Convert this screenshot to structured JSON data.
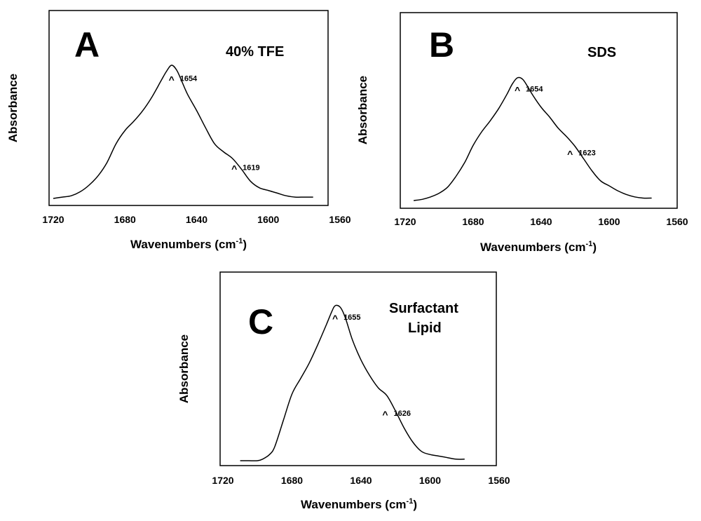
{
  "chart_data": [
    {
      "type": "line",
      "panel": "A",
      "title": "40% TFE",
      "xlabel": "Wavenumbers (cm",
      "xlabel_sup": "-1",
      "xlabel_close": ")",
      "ylabel": "Absorbance",
      "xlim": [
        1720,
        1560
      ],
      "ylim": [
        0,
        1
      ],
      "xticks": [
        1720,
        1680,
        1640,
        1600,
        1560
      ],
      "x": [
        1720,
        1715,
        1710,
        1705,
        1700,
        1695,
        1690,
        1685,
        1680,
        1675,
        1670,
        1665,
        1660,
        1657,
        1654,
        1651,
        1648,
        1645,
        1640,
        1635,
        1630,
        1625,
        1620,
        1615,
        1610,
        1605,
        1600,
        1595,
        1590,
        1585,
        1580,
        1575
      ],
      "y": [
        0.0,
        0.01,
        0.02,
        0.05,
        0.1,
        0.17,
        0.27,
        0.41,
        0.51,
        0.58,
        0.66,
        0.76,
        0.88,
        0.95,
        1.0,
        0.96,
        0.87,
        0.78,
        0.66,
        0.53,
        0.41,
        0.35,
        0.3,
        0.22,
        0.13,
        0.08,
        0.06,
        0.04,
        0.02,
        0.01,
        0.01,
        0.01
      ],
      "annotations": [
        {
          "text": "1654",
          "x": 1654,
          "y": 0.93
        },
        {
          "text": "1619",
          "x": 1619,
          "y": 0.26
        }
      ]
    },
    {
      "type": "line",
      "panel": "B",
      "title": "SDS",
      "xlabel": "Wavenumbers (cm",
      "xlabel_sup": "-1",
      "xlabel_close": ")",
      "ylabel": "Absorbance",
      "xlim": [
        1720,
        1560
      ],
      "ylim": [
        0,
        1
      ],
      "xticks": [
        1720,
        1680,
        1640,
        1600,
        1560
      ],
      "x": [
        1715,
        1710,
        1705,
        1700,
        1695,
        1690,
        1685,
        1680,
        1675,
        1670,
        1665,
        1660,
        1657,
        1654,
        1651,
        1648,
        1645,
        1640,
        1635,
        1630,
        1625,
        1620,
        1615,
        1610,
        1605,
        1600,
        1595,
        1590,
        1585,
        1580,
        1575
      ],
      "y": [
        0.0,
        0.01,
        0.03,
        0.06,
        0.11,
        0.2,
        0.31,
        0.45,
        0.56,
        0.65,
        0.75,
        0.87,
        0.95,
        1.0,
        0.99,
        0.93,
        0.86,
        0.76,
        0.68,
        0.59,
        0.52,
        0.44,
        0.34,
        0.24,
        0.16,
        0.12,
        0.08,
        0.05,
        0.03,
        0.02,
        0.02
      ],
      "annotations": [
        {
          "text": "1654",
          "x": 1654,
          "y": 0.94
        },
        {
          "text": "1623",
          "x": 1623,
          "y": 0.42
        }
      ]
    },
    {
      "type": "line",
      "panel": "C",
      "title": "Surfactant",
      "title_line2": "Lipid",
      "xlabel": "Wavenumbers (cm",
      "xlabel_sup": "-1",
      "xlabel_close": ")",
      "ylabel": "Absorbance",
      "xlim": [
        1720,
        1560
      ],
      "ylim": [
        0,
        1
      ],
      "xticks": [
        1720,
        1680,
        1640,
        1600,
        1560
      ],
      "x": [
        1710,
        1705,
        1700,
        1697,
        1693,
        1690,
        1685,
        1680,
        1675,
        1670,
        1665,
        1660,
        1657,
        1655,
        1652,
        1649,
        1645,
        1640,
        1635,
        1630,
        1625,
        1620,
        1615,
        1610,
        1605,
        1600,
        1595,
        1590,
        1585,
        1580
      ],
      "y": [
        0.0,
        0.0,
        0.0,
        0.01,
        0.04,
        0.09,
        0.26,
        0.43,
        0.53,
        0.63,
        0.75,
        0.88,
        0.96,
        1.0,
        0.99,
        0.92,
        0.78,
        0.65,
        0.55,
        0.47,
        0.42,
        0.32,
        0.21,
        0.12,
        0.06,
        0.04,
        0.03,
        0.02,
        0.01,
        0.01
      ],
      "annotations": [
        {
          "text": "1655",
          "x": 1655,
          "y": 0.95
        },
        {
          "text": "1626",
          "x": 1626,
          "y": 0.33
        }
      ]
    }
  ]
}
